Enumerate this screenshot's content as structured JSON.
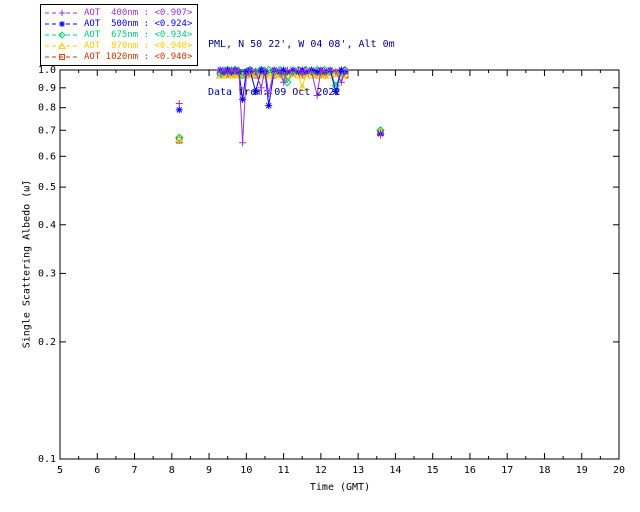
{
  "header": {
    "site_line": "PML, N 50 22', W 04 08', Alt 0m",
    "date_line": "Data from: 09 Oct 2022",
    "text_color": "#00008b"
  },
  "legend": {
    "items": [
      {
        "label": "AOT  400nm : <0.907>"
      },
      {
        "label": "AOT  500nm : <0.924>"
      },
      {
        "label": "AOT  675nm : <0.934>"
      },
      {
        "label": "AOT  870nm : <0.940>"
      },
      {
        "label": "AOT 1020nm : <0.940>"
      }
    ]
  },
  "chart_data": {
    "type": "line",
    "title": "",
    "xlabel": "Time (GMT)",
    "ylabel": "Single Scattering Albedo (ω̃)",
    "xlim": [
      5,
      20
    ],
    "ylim": [
      0.1,
      1.0
    ],
    "yscale": "log",
    "grid": false,
    "legend_position": "top-left",
    "axis_color": "#000000",
    "gap_threshold": 0.5,
    "xticks": [
      5,
      6,
      7,
      8,
      9,
      10,
      11,
      12,
      13,
      14,
      15,
      16,
      17,
      18,
      19,
      20
    ],
    "yticks": [
      1.0,
      0.9,
      0.8,
      0.7,
      0.6,
      0.5,
      0.4,
      0.3,
      0.2,
      0.1
    ],
    "x": [
      8.2,
      9.3,
      9.4,
      9.5,
      9.6,
      9.7,
      9.8,
      9.9,
      10.0,
      10.1,
      10.25,
      10.4,
      10.5,
      10.6,
      10.75,
      10.9,
      11.0,
      11.1,
      11.25,
      11.4,
      11.5,
      11.6,
      11.75,
      11.9,
      12.0,
      12.1,
      12.25,
      12.4,
      12.55,
      12.65,
      13.6
    ],
    "series": [
      {
        "name": "AOT 400nm",
        "mean": "<0.907>",
        "color": "#9932cc",
        "marker": "plus",
        "values": [
          0.82,
          0.99,
          1.0,
          0.98,
          1.0,
          0.99,
          1.0,
          0.65,
          0.97,
          1.0,
          0.99,
          0.9,
          1.0,
          0.87,
          1.0,
          0.99,
          0.93,
          1.0,
          0.99,
          1.0,
          0.98,
          1.0,
          0.99,
          0.86,
          1.0,
          0.99,
          1.0,
          0.99,
          0.93,
          1.0,
          0.68
        ]
      },
      {
        "name": "AOT 500nm",
        "mean": "<0.924>",
        "color": "#0000ff",
        "marker": "asterisk",
        "values": [
          0.79,
          1.0,
          0.99,
          1.0,
          0.99,
          1.0,
          0.99,
          0.84,
          0.99,
          1.0,
          0.88,
          1.0,
          0.99,
          0.81,
          1.0,
          0.99,
          1.0,
          0.99,
          1.0,
          0.99,
          1.0,
          0.99,
          1.0,
          0.99,
          1.0,
          0.99,
          1.0,
          0.88,
          1.0,
          0.99,
          0.685
        ]
      },
      {
        "name": "AOT 675nm",
        "mean": "<0.934>",
        "color": "#00cc77",
        "marker": "diamond",
        "values": [
          0.67,
          0.98,
          0.99,
          1.0,
          0.99,
          1.0,
          0.99,
          0.97,
          0.99,
          1.0,
          0.99,
          1.0,
          0.99,
          1.0,
          0.99,
          1.0,
          0.99,
          0.93,
          0.99,
          1.0,
          0.99,
          1.0,
          0.99,
          1.0,
          0.99,
          1.0,
          0.99,
          0.91,
          0.99,
          1.0,
          0.7
        ]
      },
      {
        "name": "AOT 870nm",
        "mean": "<0.940>",
        "color": "#ffcc00",
        "marker": "triangle",
        "values": [
          0.665,
          0.97,
          0.98,
          0.97,
          0.98,
          0.97,
          0.98,
          0.97,
          0.98,
          0.97,
          0.98,
          0.97,
          0.98,
          0.97,
          0.98,
          0.97,
          0.98,
          0.97,
          0.98,
          0.97,
          0.9,
          0.98,
          0.97,
          0.98,
          0.97,
          0.98,
          0.97,
          0.98,
          0.97,
          0.98,
          0.695
        ]
      },
      {
        "name": "AOT 1020nm",
        "mean": "<0.940>",
        "color": "#cc3300",
        "marker": "square",
        "values": [
          0.66,
          0.97,
          0.97,
          0.98,
          0.97,
          0.97,
          0.98,
          0.97,
          0.97,
          0.98,
          0.97,
          0.97,
          0.98,
          0.97,
          0.97,
          0.98,
          0.97,
          0.97,
          0.98,
          0.97,
          0.97,
          0.98,
          0.97,
          0.97,
          0.98,
          0.97,
          0.97,
          0.98,
          0.97,
          0.97,
          0.69
        ]
      }
    ]
  }
}
